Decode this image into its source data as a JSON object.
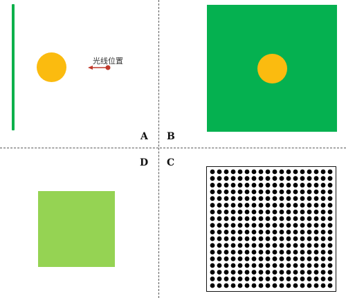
{
  "panels": {
    "a": {
      "label": "A",
      "light_label": "光线位置"
    },
    "b": {
      "label": "B"
    },
    "c": {
      "label": "C",
      "dot_rows": 18,
      "dot_cols": 18
    },
    "d": {
      "label": "D"
    }
  },
  "colors": {
    "bar_green": "#0db14b",
    "square_green": "#05b150",
    "light_green": "#95d353",
    "circle_yellow": "#fbbb0f",
    "arrow_red": "#c0392b",
    "dot": "#000000"
  }
}
